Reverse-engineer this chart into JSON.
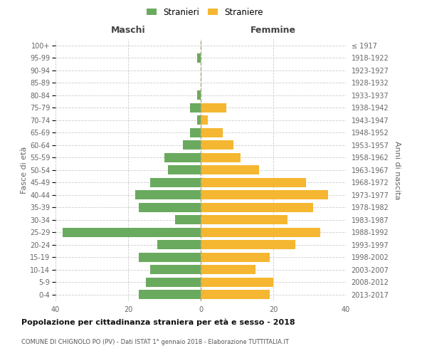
{
  "age_groups": [
    "100+",
    "95-99",
    "90-94",
    "85-89",
    "80-84",
    "75-79",
    "70-74",
    "65-69",
    "60-64",
    "55-59",
    "50-54",
    "45-49",
    "40-44",
    "35-39",
    "30-34",
    "25-29",
    "20-24",
    "15-19",
    "10-14",
    "5-9",
    "0-4"
  ],
  "birth_years": [
    "≤ 1917",
    "1918-1922",
    "1923-1927",
    "1928-1932",
    "1933-1937",
    "1938-1942",
    "1943-1947",
    "1948-1952",
    "1953-1957",
    "1958-1962",
    "1963-1967",
    "1968-1972",
    "1973-1977",
    "1978-1982",
    "1983-1987",
    "1988-1992",
    "1993-1997",
    "1998-2002",
    "2003-2007",
    "2008-2012",
    "2013-2017"
  ],
  "maschi": [
    0,
    1,
    0,
    0,
    1,
    3,
    1,
    3,
    5,
    10,
    9,
    14,
    18,
    17,
    7,
    38,
    12,
    17,
    14,
    15,
    17
  ],
  "femmine": [
    0,
    0,
    0,
    0,
    0,
    7,
    2,
    6,
    9,
    11,
    16,
    29,
    35,
    31,
    24,
    33,
    26,
    19,
    15,
    20,
    19
  ],
  "maschi_color": "#6aaa5e",
  "femmine_color": "#f5b731",
  "title": "Popolazione per cittadinanza straniera per età e sesso - 2018",
  "subtitle": "COMUNE DI CHIGNOLO PO (PV) - Dati ISTAT 1° gennaio 2018 - Elaborazione TUTTITALIA.IT",
  "ylabel_left": "Fasce di età",
  "ylabel_right": "Anni di nascita",
  "xlabel_maschi": "Maschi",
  "xlabel_femmine": "Femmine",
  "legend_maschi": "Stranieri",
  "legend_femmine": "Straniere",
  "xlim": 40,
  "background_color": "#ffffff",
  "grid_color": "#cccccc"
}
